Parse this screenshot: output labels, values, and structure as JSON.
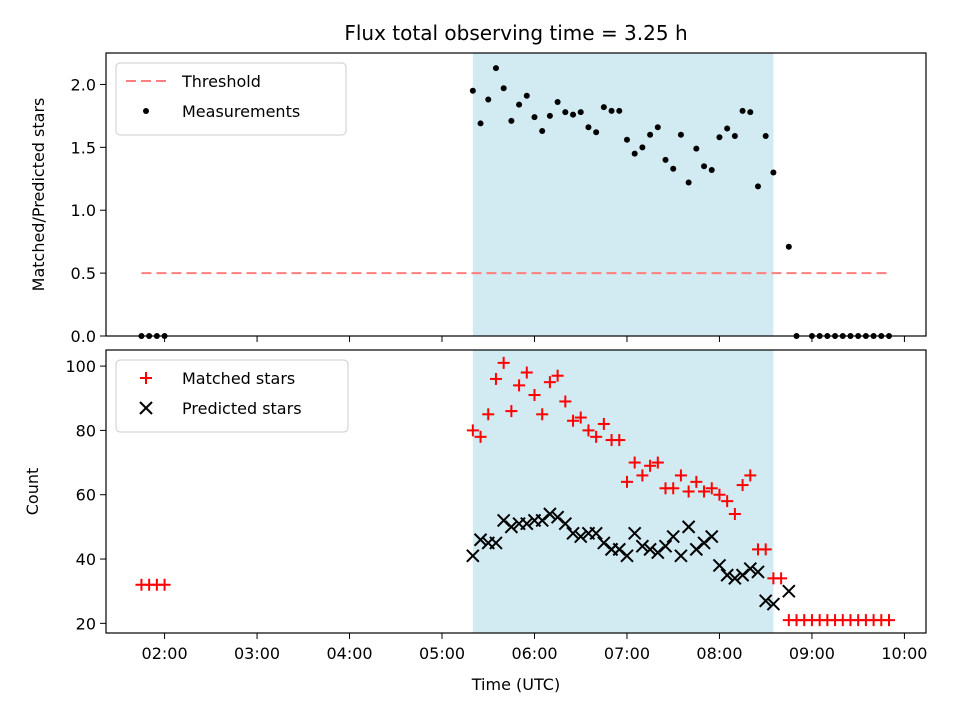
{
  "chart_data": [
    {
      "type": "scatter",
      "title": "Flux total observing time = 3.25 h",
      "xlabel": "",
      "ylabel": "Matched/Predicted stars",
      "xlim": [
        "01:22",
        "10:14"
      ],
      "ylim": [
        0,
        2.25
      ],
      "yticks": [
        0.0,
        0.5,
        1.0,
        1.5,
        2.0
      ],
      "shaded_interval": [
        "05:20",
        "08:35"
      ],
      "shade_color": "#add8e6",
      "legend_position": "top-left",
      "threshold": {
        "name": "Threshold",
        "y": 0.5,
        "x_start": "01:45",
        "x_end": "09:50",
        "color": "#ff7f7f"
      },
      "series": [
        {
          "name": "Measurements",
          "marker": "dot",
          "color": "#000000",
          "points": [
            [
              "01:45",
              0.0
            ],
            [
              "01:50",
              0.0
            ],
            [
              "01:55",
              0.0
            ],
            [
              "02:00",
              0.0
            ],
            [
              "05:20",
              1.95
            ],
            [
              "05:25",
              1.69
            ],
            [
              "05:30",
              1.88
            ],
            [
              "05:35",
              2.13
            ],
            [
              "05:40",
              1.97
            ],
            [
              "05:45",
              1.71
            ],
            [
              "05:50",
              1.84
            ],
            [
              "05:55",
              1.91
            ],
            [
              "06:00",
              1.74
            ],
            [
              "06:05",
              1.63
            ],
            [
              "06:10",
              1.75
            ],
            [
              "06:15",
              1.86
            ],
            [
              "06:20",
              1.78
            ],
            [
              "06:25",
              1.76
            ],
            [
              "06:30",
              1.78
            ],
            [
              "06:35",
              1.66
            ],
            [
              "06:40",
              1.62
            ],
            [
              "06:45",
              1.82
            ],
            [
              "06:50",
              1.79
            ],
            [
              "06:55",
              1.79
            ],
            [
              "07:00",
              1.56
            ],
            [
              "07:05",
              1.45
            ],
            [
              "07:10",
              1.5
            ],
            [
              "07:15",
              1.6
            ],
            [
              "07:20",
              1.66
            ],
            [
              "07:25",
              1.4
            ],
            [
              "07:30",
              1.33
            ],
            [
              "07:35",
              1.6
            ],
            [
              "07:40",
              1.22
            ],
            [
              "07:45",
              1.49
            ],
            [
              "07:50",
              1.35
            ],
            [
              "07:55",
              1.32
            ],
            [
              "08:00",
              1.58
            ],
            [
              "08:05",
              1.65
            ],
            [
              "08:10",
              1.59
            ],
            [
              "08:15",
              1.79
            ],
            [
              "08:20",
              1.78
            ],
            [
              "08:25",
              1.19
            ],
            [
              "08:30",
              1.59
            ],
            [
              "08:35",
              1.3
            ],
            [
              "08:45",
              0.71
            ],
            [
              "08:50",
              0.0
            ],
            [
              "09:00",
              0.0
            ],
            [
              "09:05",
              0.0
            ],
            [
              "09:10",
              0.0
            ],
            [
              "09:15",
              0.0
            ],
            [
              "09:20",
              0.0
            ],
            [
              "09:25",
              0.0
            ],
            [
              "09:30",
              0.0
            ],
            [
              "09:35",
              0.0
            ],
            [
              "09:40",
              0.0
            ],
            [
              "09:45",
              0.0
            ],
            [
              "09:50",
              0.0
            ]
          ]
        }
      ]
    },
    {
      "type": "scatter",
      "title": "",
      "xlabel": "Time (UTC)",
      "ylabel": "Count",
      "xlim": [
        "01:22",
        "10:14"
      ],
      "ylim": [
        17,
        105
      ],
      "yticks": [
        20,
        40,
        60,
        80,
        100
      ],
      "xticks": [
        "02:00",
        "03:00",
        "04:00",
        "05:00",
        "06:00",
        "07:00",
        "08:00",
        "09:00",
        "10:00"
      ],
      "shaded_interval": [
        "05:20",
        "08:35"
      ],
      "shade_color": "#add8e6",
      "legend_position": "top-left",
      "series": [
        {
          "name": "Matched stars",
          "marker": "plus",
          "color": "#ff0000",
          "points": [
            [
              "01:45",
              32
            ],
            [
              "01:50",
              32
            ],
            [
              "01:55",
              32
            ],
            [
              "02:00",
              32
            ],
            [
              "05:20",
              80
            ],
            [
              "05:25",
              78
            ],
            [
              "05:30",
              85
            ],
            [
              "05:35",
              96
            ],
            [
              "05:40",
              101
            ],
            [
              "05:45",
              86
            ],
            [
              "05:50",
              94
            ],
            [
              "05:55",
              98
            ],
            [
              "06:00",
              91
            ],
            [
              "06:05",
              85
            ],
            [
              "06:10",
              95
            ],
            [
              "06:15",
              97
            ],
            [
              "06:20",
              89
            ],
            [
              "06:25",
              83
            ],
            [
              "06:30",
              84
            ],
            [
              "06:35",
              80
            ],
            [
              "06:40",
              78
            ],
            [
              "06:45",
              82
            ],
            [
              "06:50",
              77
            ],
            [
              "06:55",
              77
            ],
            [
              "07:00",
              64
            ],
            [
              "07:05",
              70
            ],
            [
              "07:10",
              66
            ],
            [
              "07:15",
              69
            ],
            [
              "07:20",
              70
            ],
            [
              "07:25",
              62
            ],
            [
              "07:30",
              62
            ],
            [
              "07:35",
              66
            ],
            [
              "07:40",
              61
            ],
            [
              "07:45",
              64
            ],
            [
              "07:50",
              61
            ],
            [
              "07:55",
              62
            ],
            [
              "08:00",
              60
            ],
            [
              "08:05",
              58
            ],
            [
              "08:10",
              54
            ],
            [
              "08:15",
              63
            ],
            [
              "08:20",
              66
            ],
            [
              "08:25",
              43
            ],
            [
              "08:30",
              43
            ],
            [
              "08:35",
              34
            ],
            [
              "08:40",
              34
            ],
            [
              "08:45",
              21
            ],
            [
              "08:50",
              21
            ],
            [
              "08:55",
              21
            ],
            [
              "09:00",
              21
            ],
            [
              "09:05",
              21
            ],
            [
              "09:10",
              21
            ],
            [
              "09:15",
              21
            ],
            [
              "09:20",
              21
            ],
            [
              "09:25",
              21
            ],
            [
              "09:30",
              21
            ],
            [
              "09:35",
              21
            ],
            [
              "09:40",
              21
            ],
            [
              "09:45",
              21
            ],
            [
              "09:50",
              21
            ]
          ]
        },
        {
          "name": "Predicted stars",
          "marker": "x",
          "color": "#000000",
          "points": [
            [
              "05:20",
              41
            ],
            [
              "05:25",
              46
            ],
            [
              "05:30",
              45
            ],
            [
              "05:35",
              45
            ],
            [
              "05:40",
              52
            ],
            [
              "05:45",
              50
            ],
            [
              "05:50",
              51
            ],
            [
              "05:55",
              51
            ],
            [
              "06:00",
              52
            ],
            [
              "06:05",
              52
            ],
            [
              "06:10",
              54
            ],
            [
              "06:15",
              53
            ],
            [
              "06:20",
              51
            ],
            [
              "06:25",
              48
            ],
            [
              "06:30",
              47
            ],
            [
              "06:35",
              48
            ],
            [
              "06:40",
              48
            ],
            [
              "06:45",
              45
            ],
            [
              "06:50",
              43
            ],
            [
              "06:55",
              43
            ],
            [
              "07:00",
              41
            ],
            [
              "07:05",
              48
            ],
            [
              "07:10",
              44
            ],
            [
              "07:15",
              43
            ],
            [
              "07:20",
              42
            ],
            [
              "07:25",
              44
            ],
            [
              "07:30",
              47
            ],
            [
              "07:35",
              41
            ],
            [
              "07:40",
              50
            ],
            [
              "07:45",
              43
            ],
            [
              "07:50",
              45
            ],
            [
              "07:55",
              47
            ],
            [
              "08:00",
              38
            ],
            [
              "08:05",
              35
            ],
            [
              "08:10",
              34
            ],
            [
              "08:15",
              35
            ],
            [
              "08:20",
              37
            ],
            [
              "08:25",
              36
            ],
            [
              "08:30",
              27
            ],
            [
              "08:35",
              26
            ],
            [
              "08:45",
              30
            ]
          ]
        }
      ]
    }
  ]
}
